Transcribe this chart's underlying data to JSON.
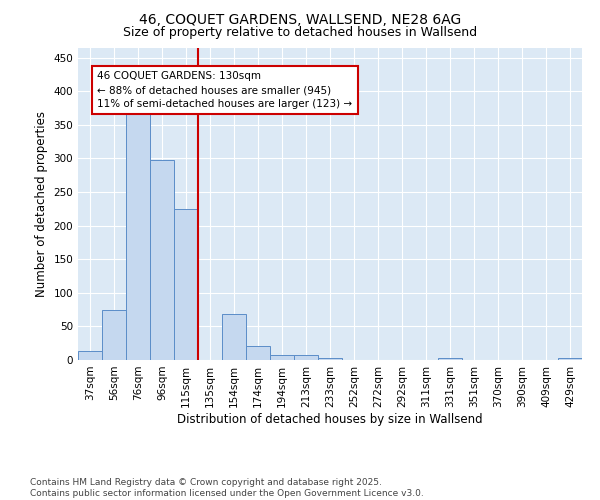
{
  "title": "46, COQUET GARDENS, WALLSEND, NE28 6AG",
  "subtitle": "Size of property relative to detached houses in Wallsend",
  "xlabel": "Distribution of detached houses by size in Wallsend",
  "ylabel": "Number of detached properties",
  "bar_categories": [
    "37sqm",
    "56sqm",
    "76sqm",
    "96sqm",
    "115sqm",
    "135sqm",
    "154sqm",
    "174sqm",
    "194sqm",
    "213sqm",
    "233sqm",
    "252sqm",
    "272sqm",
    "292sqm",
    "311sqm",
    "331sqm",
    "351sqm",
    "370sqm",
    "390sqm",
    "409sqm",
    "429sqm"
  ],
  "bar_values": [
    13,
    75,
    375,
    298,
    225,
    0,
    68,
    21,
    8,
    7,
    3,
    0,
    0,
    0,
    0,
    3,
    0,
    0,
    0,
    0,
    3
  ],
  "bar_color": "#c5d8ef",
  "bar_edge_color": "#5b8dc8",
  "vline_x": 4.5,
  "vline_color": "#cc0000",
  "annotation_text": "46 COQUET GARDENS: 130sqm\n← 88% of detached houses are smaller (945)\n11% of semi-detached houses are larger (123) →",
  "annotation_box_color": "white",
  "annotation_box_edge_color": "#cc0000",
  "ylim": [
    0,
    465
  ],
  "yticks": [
    0,
    50,
    100,
    150,
    200,
    250,
    300,
    350,
    400,
    450
  ],
  "background_color": "#dce9f5",
  "footer_text": "Contains HM Land Registry data © Crown copyright and database right 2025.\nContains public sector information licensed under the Open Government Licence v3.0.",
  "title_fontsize": 10,
  "subtitle_fontsize": 9,
  "axis_label_fontsize": 8.5,
  "tick_fontsize": 7.5,
  "annotation_fontsize": 7.5,
  "footer_fontsize": 6.5
}
